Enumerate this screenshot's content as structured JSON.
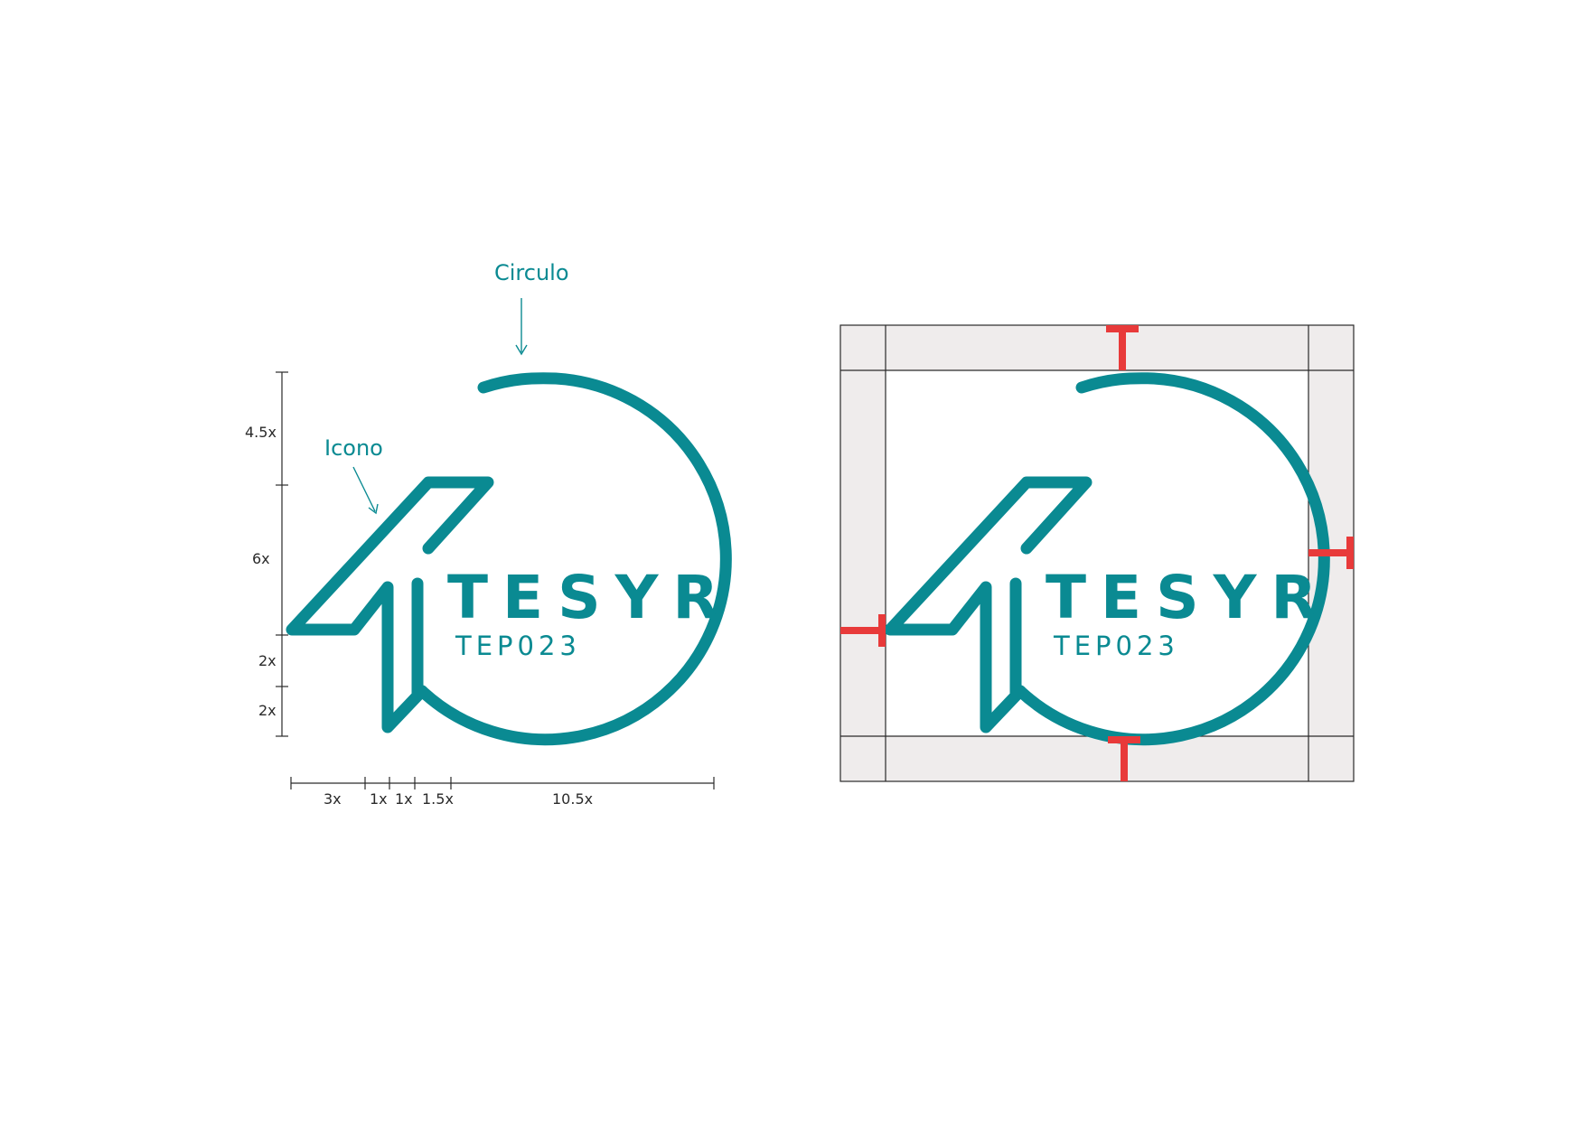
{
  "colors": {
    "brand": "#0a8a92",
    "guide": "#e83a3a",
    "margin_fill": "#efecec",
    "line": "#2a2a2a"
  },
  "callouts": {
    "circle": "Circulo",
    "icon": "Icono"
  },
  "logo": {
    "wordmark": "TESYR",
    "code": "TEP023"
  },
  "vertical_proportions": [
    "4.5x",
    "6x",
    "2x",
    "2x"
  ],
  "horizontal_proportions": [
    "3x",
    "1x",
    "1x",
    "1.5x",
    "10.5x"
  ]
}
